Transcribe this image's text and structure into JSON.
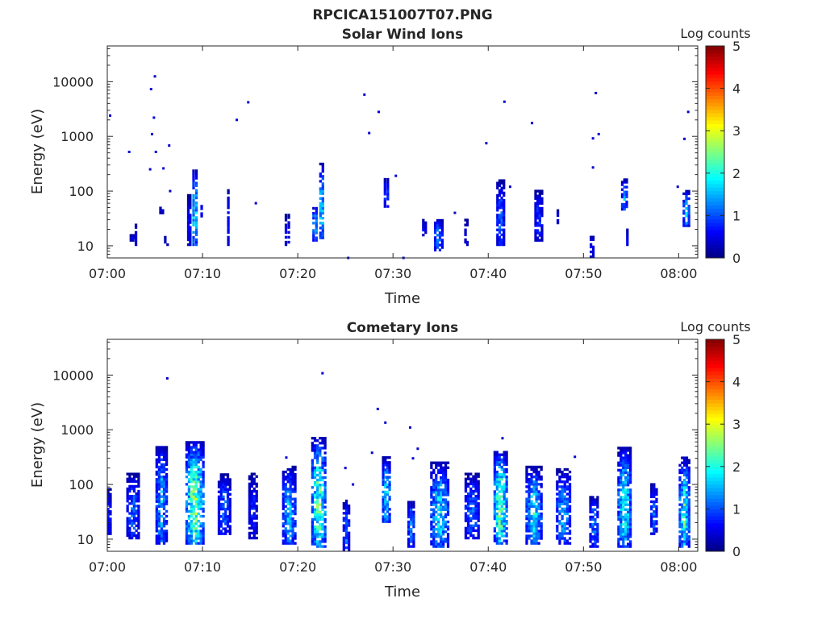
{
  "figure_title": "RPCICA151007T07.PNG",
  "chart_data": [
    {
      "type": "heatmap",
      "title": "Solar Wind Ions",
      "xlabel": "Time",
      "ylabel": "Energy (eV)",
      "x_ticks": [
        "07:00",
        "07:10",
        "07:20",
        "07:30",
        "07:40",
        "07:50",
        "08:00"
      ],
      "y_ticks": [
        "10",
        "100",
        "1000",
        "10000"
      ],
      "y_scale": "log",
      "ylim": [
        6,
        45000
      ],
      "xlim": [
        "07:00",
        "08:02"
      ],
      "colorbar": {
        "label": "Log counts",
        "ticks": [
          "0",
          "1",
          "2",
          "3",
          "4",
          "5"
        ],
        "range": [
          0,
          5
        ],
        "colormap": "jet"
      },
      "bursts": [
        {
          "t": 2.7,
          "emin": 12,
          "emax": 15,
          "peak": 0.6,
          "width": 0.7
        },
        {
          "t": 3.0,
          "emin": 10,
          "emax": 25,
          "peak": 0.5,
          "width": 0.3
        },
        {
          "t": 5.7,
          "emin": 38,
          "emax": 50,
          "peak": 0.5,
          "width": 0.5
        },
        {
          "t": 6.2,
          "emin": 10,
          "emax": 15,
          "peak": 0.5,
          "width": 0.5
        },
        {
          "t": 8.6,
          "emin": 10,
          "emax": 80,
          "peak": 0.9,
          "width": 0.4
        },
        {
          "t": 9.2,
          "emin": 10,
          "emax": 230,
          "peak": 2.3,
          "width": 0.6
        },
        {
          "t": 9.9,
          "emin": 30,
          "emax": 60,
          "peak": 0.7,
          "width": 0.3
        },
        {
          "t": 12.7,
          "emin": 10,
          "emax": 100,
          "peak": 0.6,
          "width": 0.3
        },
        {
          "t": 18.9,
          "emin": 10,
          "emax": 35,
          "peak": 0.8,
          "width": 0.6
        },
        {
          "t": 21.8,
          "emin": 12,
          "emax": 50,
          "peak": 2.0,
          "width": 0.6
        },
        {
          "t": 22.5,
          "emin": 12,
          "emax": 300,
          "peak": 2.2,
          "width": 0.5
        },
        {
          "t": 29.3,
          "emin": 50,
          "emax": 170,
          "peak": 1.1,
          "width": 0.6
        },
        {
          "t": 33.3,
          "emin": 15,
          "emax": 30,
          "peak": 0.8,
          "width": 0.5
        },
        {
          "t": 34.8,
          "emin": 8,
          "emax": 30,
          "peak": 1.5,
          "width": 1.0
        },
        {
          "t": 37.7,
          "emin": 10,
          "emax": 30,
          "peak": 0.7,
          "width": 0.4
        },
        {
          "t": 41.3,
          "emin": 10,
          "emax": 150,
          "peak": 1.3,
          "width": 0.9
        },
        {
          "t": 45.3,
          "emin": 12,
          "emax": 100,
          "peak": 1.0,
          "width": 0.9
        },
        {
          "t": 47.3,
          "emin": 25,
          "emax": 45,
          "peak": 0.6,
          "width": 0.3
        },
        {
          "t": 50.9,
          "emin": 6,
          "emax": 15,
          "peak": 0.8,
          "width": 0.5
        },
        {
          "t": 54.3,
          "emin": 40,
          "emax": 160,
          "peak": 1.5,
          "width": 0.7
        },
        {
          "t": 54.6,
          "emin": 10,
          "emax": 20,
          "peak": 0.6,
          "width": 0.3
        },
        {
          "t": 60.8,
          "emin": 20,
          "emax": 100,
          "peak": 1.6,
          "width": 0.8
        }
      ],
      "sparse_points": [
        {
          "t": 0.3,
          "e": 2400,
          "v": 0.4
        },
        {
          "t": 2.3,
          "e": 520,
          "v": 0.4
        },
        {
          "t": 4.6,
          "e": 7300,
          "v": 0.4
        },
        {
          "t": 5.0,
          "e": 12500,
          "v": 0.4
        },
        {
          "t": 4.9,
          "e": 2200,
          "v": 0.4
        },
        {
          "t": 4.7,
          "e": 1100,
          "v": 0.4
        },
        {
          "t": 5.1,
          "e": 520,
          "v": 0.4
        },
        {
          "t": 6.5,
          "e": 680,
          "v": 0.4
        },
        {
          "t": 4.5,
          "e": 250,
          "v": 0.4
        },
        {
          "t": 5.9,
          "e": 260,
          "v": 0.4
        },
        {
          "t": 6.6,
          "e": 100,
          "v": 0.4
        },
        {
          "t": 13.6,
          "e": 2000,
          "v": 0.4
        },
        {
          "t": 14.8,
          "e": 4200,
          "v": 0.4
        },
        {
          "t": 15.6,
          "e": 60,
          "v": 0.4
        },
        {
          "t": 27.0,
          "e": 5800,
          "v": 0.4
        },
        {
          "t": 28.5,
          "e": 2800,
          "v": 0.4
        },
        {
          "t": 27.5,
          "e": 1150,
          "v": 0.4
        },
        {
          "t": 30.3,
          "e": 190,
          "v": 0.4
        },
        {
          "t": 36.5,
          "e": 40,
          "v": 0.4
        },
        {
          "t": 39.8,
          "e": 750,
          "v": 0.4
        },
        {
          "t": 41.7,
          "e": 4300,
          "v": 0.4
        },
        {
          "t": 44.6,
          "e": 1750,
          "v": 0.4
        },
        {
          "t": 51.3,
          "e": 6200,
          "v": 0.4
        },
        {
          "t": 51.6,
          "e": 1100,
          "v": 0.4
        },
        {
          "t": 51.0,
          "e": 920,
          "v": 0.4
        },
        {
          "t": 51.0,
          "e": 270,
          "v": 0.4
        },
        {
          "t": 59.9,
          "e": 120,
          "v": 0.4
        },
        {
          "t": 61.0,
          "e": 2800,
          "v": 0.4
        },
        {
          "t": 60.6,
          "e": 900,
          "v": 0.4
        },
        {
          "t": 42.3,
          "e": 120,
          "v": 0.4
        },
        {
          "t": 25.3,
          "e": 6,
          "v": 0.4
        },
        {
          "t": 31.1,
          "e": 6,
          "v": 0.4
        }
      ]
    },
    {
      "type": "heatmap",
      "title": "Cometary Ions",
      "xlabel": "Time",
      "ylabel": "Energy (eV)",
      "x_ticks": [
        "07:00",
        "07:10",
        "07:20",
        "07:30",
        "07:40",
        "07:50",
        "08:00"
      ],
      "y_ticks": [
        "10",
        "100",
        "1000",
        "10000"
      ],
      "y_scale": "log",
      "ylim": [
        6,
        45000
      ],
      "xlim": [
        "07:00",
        "08:02"
      ],
      "colorbar": {
        "label": "Log counts",
        "ticks": [
          "0",
          "1",
          "2",
          "3",
          "4",
          "5"
        ],
        "range": [
          0,
          5
        ],
        "colormap": "jet"
      },
      "bursts": [
        {
          "t": 0.2,
          "emin": 12,
          "emax": 80,
          "peak": 1.0,
          "width": 0.5
        },
        {
          "t": 2.7,
          "emin": 10,
          "emax": 150,
          "peak": 1.3,
          "width": 1.4
        },
        {
          "t": 5.7,
          "emin": 8,
          "emax": 500,
          "peak": 1.7,
          "width": 1.3
        },
        {
          "t": 9.2,
          "emin": 8,
          "emax": 600,
          "peak": 2.8,
          "width": 2.0
        },
        {
          "t": 12.3,
          "emin": 12,
          "emax": 150,
          "peak": 1.3,
          "width": 1.4
        },
        {
          "t": 15.3,
          "emin": 10,
          "emax": 150,
          "peak": 0.9,
          "width": 1.0
        },
        {
          "t": 19.1,
          "emin": 8,
          "emax": 200,
          "peak": 1.8,
          "width": 1.5
        },
        {
          "t": 22.2,
          "emin": 7,
          "emax": 700,
          "peak": 2.6,
          "width": 1.6
        },
        {
          "t": 25.1,
          "emin": 6,
          "emax": 50,
          "peak": 1.3,
          "width": 0.8
        },
        {
          "t": 29.3,
          "emin": 20,
          "emax": 300,
          "peak": 2.0,
          "width": 0.9
        },
        {
          "t": 31.9,
          "emin": 7,
          "emax": 50,
          "peak": 1.5,
          "width": 0.8
        },
        {
          "t": 34.9,
          "emin": 7,
          "emax": 250,
          "peak": 2.0,
          "width": 2.0
        },
        {
          "t": 38.3,
          "emin": 10,
          "emax": 150,
          "peak": 1.4,
          "width": 1.6
        },
        {
          "t": 41.3,
          "emin": 8,
          "emax": 400,
          "peak": 2.7,
          "width": 1.5
        },
        {
          "t": 44.8,
          "emin": 8,
          "emax": 200,
          "peak": 2.0,
          "width": 1.8
        },
        {
          "t": 47.9,
          "emin": 8,
          "emax": 180,
          "peak": 1.7,
          "width": 1.6
        },
        {
          "t": 51.1,
          "emin": 7,
          "emax": 60,
          "peak": 1.4,
          "width": 1.0
        },
        {
          "t": 54.3,
          "emin": 7,
          "emax": 450,
          "peak": 2.2,
          "width": 1.5
        },
        {
          "t": 57.4,
          "emin": 12,
          "emax": 100,
          "peak": 1.2,
          "width": 0.8
        },
        {
          "t": 60.6,
          "emin": 7,
          "emax": 300,
          "peak": 2.3,
          "width": 1.2
        }
      ],
      "sparse_points": [
        {
          "t": 6.3,
          "e": 8700,
          "v": 0.4
        },
        {
          "t": 22.6,
          "e": 10800,
          "v": 0.4
        },
        {
          "t": 28.4,
          "e": 2400,
          "v": 0.4
        },
        {
          "t": 29.2,
          "e": 1350,
          "v": 0.4
        },
        {
          "t": 31.8,
          "e": 1100,
          "v": 0.4
        },
        {
          "t": 41.5,
          "e": 700,
          "v": 0.4
        },
        {
          "t": 18.8,
          "e": 310,
          "v": 0.4
        },
        {
          "t": 27.8,
          "e": 380,
          "v": 0.4
        },
        {
          "t": 32.6,
          "e": 450,
          "v": 0.4
        },
        {
          "t": 49.1,
          "e": 320,
          "v": 0.4
        },
        {
          "t": 25.0,
          "e": 200,
          "v": 0.4
        },
        {
          "t": 25.8,
          "e": 100,
          "v": 0.4
        },
        {
          "t": 32.1,
          "e": 300,
          "v": 0.4
        }
      ]
    }
  ]
}
